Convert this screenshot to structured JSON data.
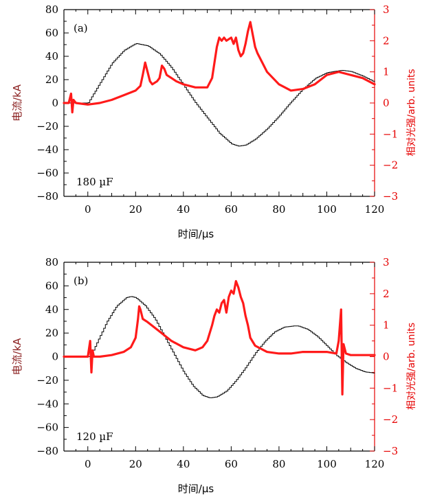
{
  "chart_data": [
    {
      "type": "line",
      "panel_label": "(a)",
      "capacitance_label": "180 µF",
      "xlabel": "时间/µs",
      "ylabel_left": "电流/kA",
      "ylabel_right": "相对光强/arb. units",
      "xlim": [
        -10,
        120
      ],
      "ylim_left": [
        -80,
        80
      ],
      "ylim_right": [
        -3,
        3
      ],
      "x_ticks": [
        "0",
        "20",
        "40",
        "60",
        "80",
        "100",
        "120"
      ],
      "y_ticks_left": [
        "80",
        "60",
        "40",
        "20",
        "0",
        "−20",
        "−40",
        "−60",
        "−80"
      ],
      "y_ticks_right": [
        "3",
        "2",
        "1",
        "0",
        "−1",
        "−2",
        "−3"
      ],
      "series": [
        {
          "name": "current",
          "axis": "left",
          "color": "#000000",
          "x": [
            -10,
            0,
            5,
            10,
            15,
            20,
            25,
            30,
            35,
            40,
            45,
            50,
            55,
            60,
            63,
            66,
            70,
            75,
            80,
            85,
            90,
            95,
            100,
            106,
            110,
            115,
            120
          ],
          "y": [
            0,
            0,
            17,
            34,
            45,
            51,
            49,
            42,
            30,
            15,
            0,
            -13,
            -26,
            -35,
            -37,
            -36,
            -31,
            -22,
            -11,
            1,
            12,
            21,
            26,
            28,
            27,
            23,
            18
          ]
        },
        {
          "name": "luminosity",
          "axis": "right",
          "color": "#ff1a1a",
          "x": [
            -10,
            -8,
            -7,
            -6.5,
            -6,
            -5,
            0,
            5,
            10,
            15,
            20,
            22,
            23,
            24,
            25,
            26,
            27,
            29,
            30,
            31,
            32,
            33,
            35,
            37,
            40,
            45,
            50,
            52,
            54,
            55,
            56,
            57,
            58,
            60,
            61,
            62,
            63,
            64,
            65,
            66,
            67,
            68,
            69,
            70,
            71,
            73,
            75,
            80,
            85,
            90,
            95,
            100,
            105,
            110,
            115,
            120
          ],
          "y": [
            0,
            0,
            0.3,
            -0.3,
            0.1,
            0,
            -0.05,
            0,
            0.1,
            0.25,
            0.4,
            0.55,
            0.9,
            1.3,
            1.0,
            0.7,
            0.6,
            0.7,
            0.8,
            1.2,
            1.1,
            0.9,
            0.8,
            0.7,
            0.6,
            0.5,
            0.5,
            0.8,
            1.8,
            2.1,
            2.0,
            2.1,
            2.0,
            2.1,
            1.9,
            2.1,
            1.7,
            1.5,
            1.6,
            1.9,
            2.3,
            2.6,
            2.2,
            1.8,
            1.6,
            1.3,
            1.0,
            0.6,
            0.4,
            0.45,
            0.6,
            0.9,
            1.0,
            0.9,
            0.8,
            0.6
          ]
        }
      ]
    },
    {
      "type": "line",
      "panel_label": "(b)",
      "capacitance_label": "120 µF",
      "xlabel": "时间/µs",
      "ylabel_left": "电流/kA",
      "ylabel_right": "相对光强/arb. units",
      "xlim": [
        -10,
        120
      ],
      "ylim_left": [
        -80,
        80
      ],
      "ylim_right": [
        -3,
        3
      ],
      "x_ticks": [
        "0",
        "20",
        "40",
        "60",
        "80",
        "100",
        "120"
      ],
      "y_ticks_left": [
        "80",
        "60",
        "40",
        "20",
        "0",
        "−20",
        "−40",
        "−60",
        "−80"
      ],
      "y_ticks_right": [
        "3",
        "2",
        "1",
        "0",
        "−1",
        "−2",
        "−3"
      ],
      "series": [
        {
          "name": "current",
          "axis": "left",
          "color": "#000000",
          "x": [
            -10,
            1,
            4,
            8,
            12,
            16,
            18,
            20,
            24,
            28,
            32,
            36,
            40,
            44,
            48,
            51,
            54,
            58,
            62,
            66,
            70,
            74,
            78,
            82,
            86,
            88,
            92,
            96,
            100,
            104,
            108,
            112,
            116,
            120
          ],
          "y": [
            0,
            0,
            13,
            30,
            43,
            50,
            51,
            50,
            43,
            32,
            17,
            2,
            -13,
            -25,
            -33,
            -35,
            -34,
            -29,
            -20,
            -9,
            3,
            13,
            21,
            25,
            26,
            26,
            23,
            17,
            9,
            1,
            -5,
            -10,
            -13,
            -14
          ]
        },
        {
          "name": "luminosity",
          "axis": "right",
          "color": "#ff1a1a",
          "x": [
            -10,
            0,
            1,
            1.5,
            2,
            2.5,
            5,
            10,
            15,
            18,
            20,
            21,
            21.5,
            22,
            23,
            25,
            30,
            35,
            40,
            45,
            48,
            50,
            52,
            53,
            54,
            55,
            56,
            57,
            58,
            59,
            60,
            61,
            62,
            63,
            64,
            65,
            66,
            67,
            68,
            70,
            75,
            80,
            85,
            90,
            95,
            100,
            104,
            105,
            106,
            106.5,
            107,
            108,
            110,
            115,
            120
          ],
          "y": [
            0,
            0,
            0.5,
            -0.5,
            0.2,
            0,
            0,
            0.05,
            0.15,
            0.3,
            0.6,
            1.2,
            1.6,
            1.5,
            1.2,
            1.1,
            0.8,
            0.5,
            0.3,
            0.2,
            0.3,
            0.5,
            1.0,
            1.3,
            1.5,
            1.4,
            1.7,
            1.8,
            1.4,
            1.9,
            2.1,
            2.0,
            2.4,
            2.2,
            1.9,
            1.7,
            1.3,
            1.0,
            0.6,
            0.35,
            0.15,
            0.1,
            0.1,
            0.15,
            0.15,
            0.15,
            0.1,
            0.5,
            1.5,
            -1.2,
            0.4,
            0.1,
            0.05,
            0.05,
            0.05
          ]
        }
      ]
    }
  ]
}
